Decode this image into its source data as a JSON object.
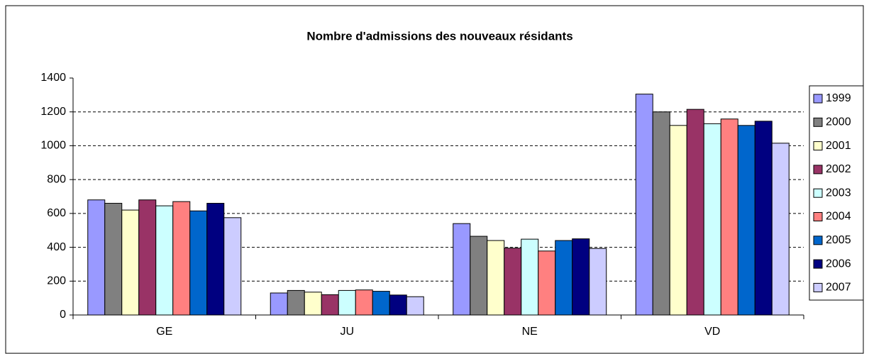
{
  "chart_data": {
    "type": "bar",
    "title": "Nombre d'admissions des nouveaux résidants",
    "categories": [
      "GE",
      "JU",
      "NE",
      "VD"
    ],
    "series": [
      {
        "name": "1999",
        "color": "#9999ff",
        "values": [
          680,
          130,
          540,
          1305
        ]
      },
      {
        "name": "2000",
        "color": "#808080",
        "values": [
          660,
          145,
          465,
          1200
        ]
      },
      {
        "name": "2001",
        "color": "#ffffcc",
        "values": [
          620,
          135,
          440,
          1120
        ]
      },
      {
        "name": "2002",
        "color": "#993366",
        "values": [
          680,
          120,
          395,
          1215
        ]
      },
      {
        "name": "2003",
        "color": "#ccffff",
        "values": [
          645,
          145,
          448,
          1130
        ]
      },
      {
        "name": "2004",
        "color": "#ff8080",
        "values": [
          670,
          148,
          378,
          1158
        ]
      },
      {
        "name": "2005",
        "color": "#0066cc",
        "values": [
          615,
          140,
          440,
          1120
        ]
      },
      {
        "name": "2006",
        "color": "#000080",
        "values": [
          660,
          118,
          450,
          1145
        ]
      },
      {
        "name": "2007",
        "color": "#ccccff",
        "values": [
          575,
          108,
          393,
          1015
        ]
      }
    ],
    "ylim": [
      0,
      1400
    ],
    "yticks": [
      0,
      200,
      400,
      600,
      800,
      1000,
      1200,
      1400
    ],
    "grid": true,
    "legend": "right"
  }
}
